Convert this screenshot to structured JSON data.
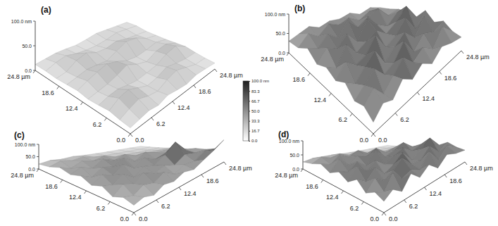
{
  "chart_data": [
    {
      "type": "surface",
      "title": "(a)",
      "x": [
        0,
        2.76,
        5.51,
        8.27,
        11.02,
        13.78,
        16.53,
        19.29,
        22.04,
        24.8
      ],
      "y": [
        0,
        2.76,
        5.51,
        8.27,
        11.02,
        13.78,
        16.53,
        19.29,
        22.04,
        24.8
      ],
      "z": [
        [
          12,
          15,
          18,
          14,
          20,
          16,
          13,
          17,
          15,
          12
        ],
        [
          14,
          22,
          28,
          20,
          16,
          25,
          30,
          22,
          14,
          13
        ],
        [
          18,
          30,
          34,
          24,
          15,
          18,
          26,
          20,
          16,
          15
        ],
        [
          15,
          20,
          22,
          17,
          14,
          16,
          19,
          28,
          32,
          18
        ],
        [
          13,
          16,
          19,
          25,
          33,
          22,
          15,
          24,
          26,
          16
        ],
        [
          16,
          24,
          30,
          35,
          28,
          18,
          14,
          16,
          20,
          14
        ],
        [
          14,
          18,
          22,
          20,
          17,
          26,
          34,
          30,
          18,
          13
        ],
        [
          12,
          15,
          27,
          32,
          22,
          20,
          24,
          18,
          15,
          12
        ],
        [
          13,
          20,
          24,
          18,
          15,
          14,
          16,
          20,
          17,
          14
        ],
        [
          12,
          14,
          16,
          15,
          13,
          15,
          18,
          16,
          14,
          12
        ]
      ],
      "xlim": [
        0,
        24.8
      ],
      "xticks": [
        {
          "value": 0,
          "label": "0.0"
        },
        6.2,
        12.4,
        18.6,
        {
          "value": 24.8,
          "label": "24.8 µm"
        }
      ],
      "ylim": [
        0,
        24.8
      ],
      "yticks": [
        {
          "value": 0,
          "label": "0.0"
        },
        6.2,
        12.4,
        18.6,
        {
          "value": 24.8,
          "label": "24.8 µm"
        }
      ],
      "zlim": [
        0,
        100
      ],
      "zticks": [
        {
          "value": 0,
          "label": "0.0"
        },
        {
          "value": 50,
          "label": "50.0"
        },
        {
          "value": 100,
          "label": "100.0 nm"
        }
      ]
    },
    {
      "type": "surface",
      "title": "(b)",
      "x": [
        0,
        2.76,
        5.51,
        8.27,
        11.02,
        13.78,
        16.53,
        19.29,
        22.04,
        24.8
      ],
      "y": [
        0,
        2.76,
        5.51,
        8.27,
        11.02,
        13.78,
        16.53,
        19.29,
        22.04,
        24.8
      ],
      "z": [
        [
          30,
          55,
          40,
          70,
          45,
          62,
          38,
          58,
          44,
          35
        ],
        [
          48,
          72,
          35,
          60,
          85,
          50,
          66,
          40,
          75,
          42
        ],
        [
          38,
          58,
          80,
          45,
          55,
          90,
          42,
          68,
          52,
          60
        ],
        [
          62,
          40,
          65,
          88,
          38,
          60,
          78,
          46,
          82,
          48
        ],
        [
          44,
          75,
          50,
          58,
          92,
          44,
          56,
          85,
          40,
          70
        ],
        [
          55,
          38,
          82,
          46,
          60,
          72,
          48,
          64,
          88,
          45
        ],
        [
          40,
          68,
          52,
          76,
          42,
          86,
          58,
          40,
          62,
          50
        ],
        [
          58,
          45,
          70,
          48,
          80,
          50,
          66,
          74,
          44,
          48
        ],
        [
          36,
          62,
          44,
          66,
          52,
          60,
          42,
          55,
          48,
          40
        ],
        [
          30,
          40,
          50,
          38,
          46,
          42,
          48,
          36,
          44,
          35
        ]
      ],
      "xlim": [
        0,
        24.8
      ],
      "xticks": [
        {
          "value": 0,
          "label": "0.0"
        },
        6.2,
        12.4,
        18.6,
        {
          "value": 24.8,
          "label": "24.8 µm"
        }
      ],
      "ylim": [
        0,
        24.8
      ],
      "yticks": [
        {
          "value": 0,
          "label": "0.0"
        },
        6.2,
        12.4,
        18.6,
        {
          "value": 24.8,
          "label": "24.8 µm"
        }
      ],
      "zlim": [
        0,
        100
      ],
      "zticks": [
        {
          "value": 0,
          "label": "0.0"
        },
        {
          "value": 50,
          "label": "50.0"
        },
        {
          "value": 100,
          "label": "100.0 nm"
        }
      ]
    },
    {
      "type": "surface",
      "title": "(c)",
      "x": [
        0,
        2.76,
        5.51,
        8.27,
        11.02,
        13.78,
        16.53,
        19.29,
        22.04,
        24.8
      ],
      "y": [
        0,
        2.76,
        5.51,
        8.27,
        11.02,
        13.78,
        16.53,
        19.29,
        22.04,
        24.8
      ],
      "z": [
        [
          30,
          40,
          25,
          45,
          35,
          50,
          38,
          55,
          70,
          90
        ],
        [
          42,
          28,
          50,
          36,
          58,
          30,
          46,
          40,
          60,
          48
        ],
        [
          25,
          55,
          38,
          62,
          40,
          52,
          35,
          58,
          45,
          40
        ],
        [
          48,
          35,
          60,
          30,
          55,
          42,
          65,
          100,
          50,
          38
        ],
        [
          32,
          58,
          40,
          66,
          35,
          60,
          38,
          48,
          42,
          30
        ],
        [
          50,
          30,
          55,
          42,
          62,
          34,
          56,
          40,
          36,
          28
        ],
        [
          36,
          52,
          34,
          58,
          40,
          50,
          32,
          30,
          26,
          22
        ],
        [
          45,
          30,
          48,
          36,
          44,
          28,
          26,
          22,
          20,
          18
        ],
        [
          28,
          42,
          32,
          38,
          26,
          22,
          20,
          18,
          16,
          15
        ],
        [
          20,
          26,
          22,
          24,
          20,
          18,
          16,
          15,
          14,
          12
        ]
      ],
      "xlim": [
        0,
        24.8
      ],
      "xticks": [
        {
          "value": 0,
          "label": "0.0"
        },
        6.2,
        12.4,
        18.6,
        {
          "value": 24.8,
          "label": "24.8 µm"
        }
      ],
      "ylim": [
        0,
        24.8
      ],
      "yticks": [
        {
          "value": 0,
          "label": "0.0"
        },
        6.2,
        12.4,
        18.6,
        {
          "value": 24.8,
          "label": "24.8 µm"
        }
      ],
      "zlim": [
        0,
        100
      ],
      "zticks": [
        {
          "value": 0,
          "label": "0.0"
        },
        {
          "value": 50,
          "label": "50.0"
        },
        {
          "value": 100,
          "label": "100.0 nm"
        }
      ]
    },
    {
      "type": "surface",
      "title": "(d)",
      "x": [
        0,
        2.76,
        5.51,
        8.27,
        11.02,
        13.78,
        16.53,
        19.29,
        22.04,
        24.8
      ],
      "y": [
        0,
        2.76,
        5.51,
        8.27,
        11.02,
        13.78,
        16.53,
        19.29,
        22.04,
        24.8
      ],
      "z": [
        [
          40,
          62,
          35,
          78,
          45,
          70,
          38,
          66,
          50,
          42
        ],
        [
          55,
          38,
          85,
          48,
          60,
          42,
          88,
          40,
          72,
          48
        ],
        [
          35,
          70,
          45,
          64,
          90,
          52,
          46,
          80,
          44,
          60
        ],
        [
          66,
          42,
          76,
          38,
          55,
          82,
          40,
          62,
          86,
          45
        ],
        [
          40,
          80,
          50,
          72,
          44,
          60,
          74,
          48,
          58,
          40
        ],
        [
          58,
          46,
          68,
          40,
          86,
          46,
          56,
          70,
          42,
          35
        ],
        [
          38,
          74,
          42,
          62,
          50,
          66,
          40,
          45,
          30,
          25
        ],
        [
          52,
          40,
          64,
          46,
          58,
          38,
          30,
          26,
          22,
          20
        ],
        [
          36,
          50,
          38,
          44,
          30,
          26,
          22,
          20,
          18,
          16
        ],
        [
          25,
          30,
          28,
          26,
          22,
          20,
          18,
          16,
          15,
          14
        ]
      ],
      "xlim": [
        0,
        24.8
      ],
      "xticks": [
        {
          "value": 0,
          "label": "0.0"
        },
        6.2,
        12.4,
        18.6,
        {
          "value": 24.8,
          "label": "24.8 µm"
        }
      ],
      "ylim": [
        0,
        24.8
      ],
      "yticks": [
        {
          "value": 0,
          "label": "0.0"
        },
        6.2,
        12.4,
        18.6,
        {
          "value": 24.8,
          "label": "24.8 µm"
        }
      ],
      "zlim": [
        0,
        100
      ],
      "zticks": [
        {
          "value": 0,
          "label": "0.0"
        },
        {
          "value": 50,
          "label": "50.0"
        },
        {
          "value": 100,
          "label": "100.0 nm"
        }
      ]
    }
  ],
  "colorbar": {
    "range": [
      0,
      100
    ],
    "ticks": [
      {
        "value": 0,
        "label": "0.0"
      },
      16.7,
      33.3,
      {
        "value": 50,
        "label": "50.0"
      },
      66.7,
      83.3,
      {
        "value": 100,
        "label": "100.0 nm"
      }
    ]
  }
}
